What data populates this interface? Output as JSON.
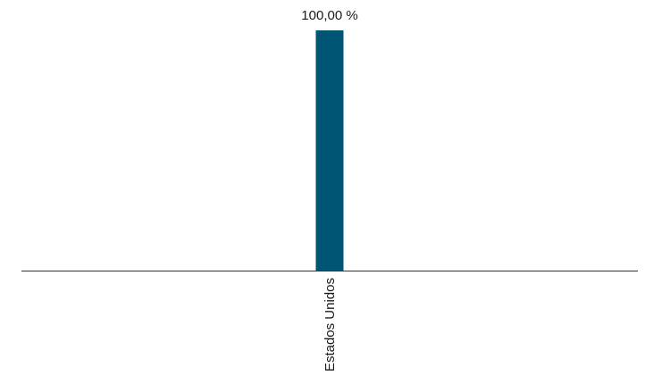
{
  "chart_data": {
    "type": "bar",
    "categories": [
      "Estados Unidos"
    ],
    "values": [
      100.0
    ],
    "data_labels": [
      "100,00 %"
    ],
    "ylim": [
      0,
      100
    ],
    "grid": false,
    "legend": "none",
    "colors": {
      "bar": "#005574",
      "axis": "#333333"
    }
  }
}
